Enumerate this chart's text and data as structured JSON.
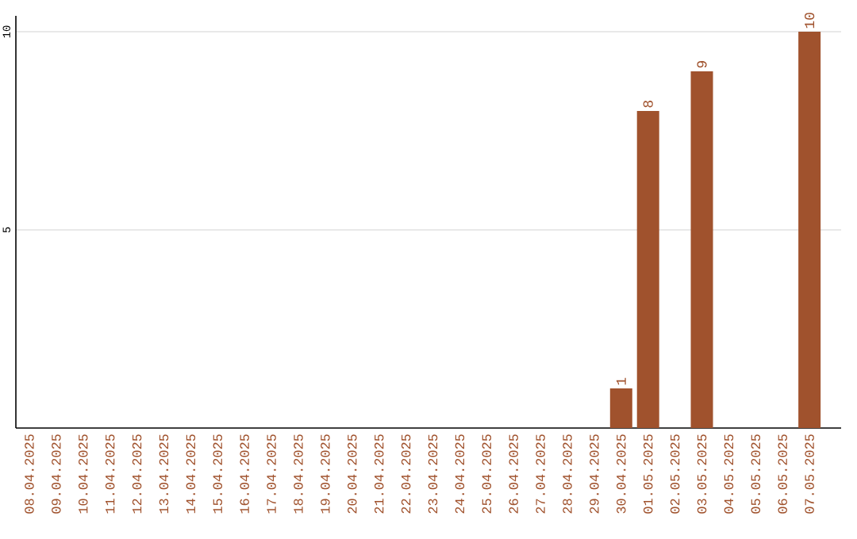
{
  "chart_data": {
    "type": "bar",
    "categories": [
      "08.04.2025",
      "09.04.2025",
      "10.04.2025",
      "11.04.2025",
      "12.04.2025",
      "13.04.2025",
      "14.04.2025",
      "15.04.2025",
      "16.04.2025",
      "17.04.2025",
      "18.04.2025",
      "19.04.2025",
      "20.04.2025",
      "21.04.2025",
      "22.04.2025",
      "23.04.2025",
      "24.04.2025",
      "25.04.2025",
      "26.04.2025",
      "27.04.2025",
      "28.04.2025",
      "29.04.2025",
      "30.04.2025",
      "01.05.2025",
      "02.05.2025",
      "03.05.2025",
      "04.05.2025",
      "05.05.2025",
      "06.05.2025",
      "07.05.2025"
    ],
    "values": [
      0,
      0,
      0,
      0,
      0,
      0,
      0,
      0,
      0,
      0,
      0,
      0,
      0,
      0,
      0,
      0,
      0,
      0,
      0,
      0,
      0,
      0,
      1,
      8,
      0,
      9,
      0,
      0,
      0,
      10
    ],
    "value_labels": [
      null,
      null,
      null,
      null,
      null,
      null,
      null,
      null,
      null,
      null,
      null,
      null,
      null,
      null,
      null,
      null,
      null,
      null,
      null,
      null,
      null,
      null,
      "1",
      "8",
      null,
      "9",
      null,
      null,
      null,
      "10"
    ],
    "color": "#a0522d",
    "ylim": [
      0,
      10.4
    ],
    "yticks": [
      5,
      10
    ],
    "grid": "y"
  }
}
